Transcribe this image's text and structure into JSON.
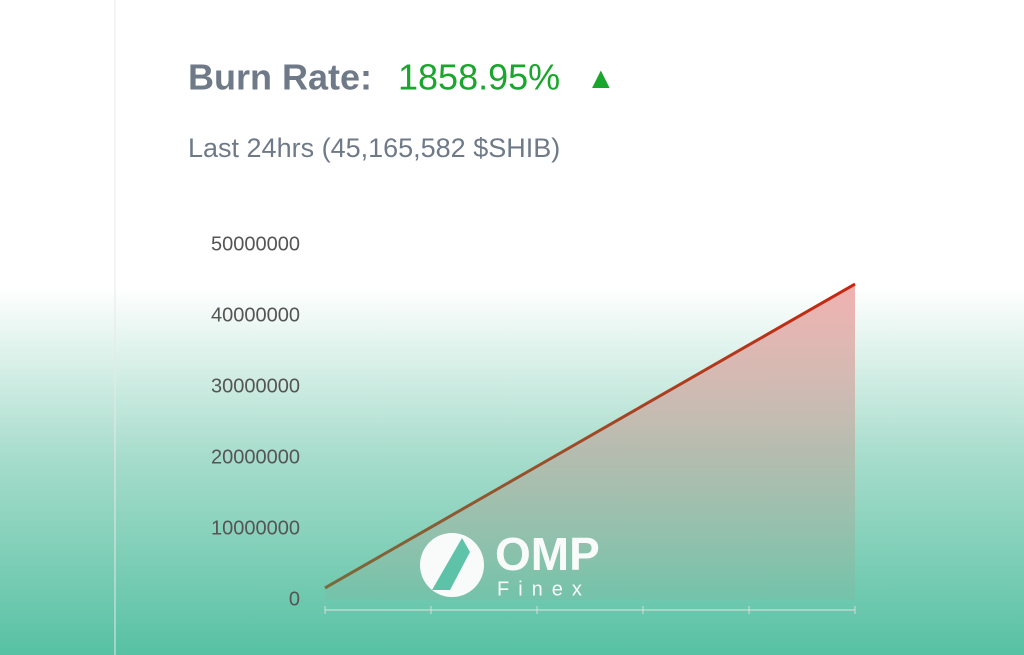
{
  "chart_data": {
    "type": "area",
    "title": "Burn Rate:",
    "title_value": "1858.95%",
    "title_marker": "▲",
    "subtitle": "Last 24hrs (45,165,582 $SHIB)",
    "categories": [
      null,
      null,
      null,
      null,
      null,
      null
    ],
    "series": [
      {
        "color": "#c8260f",
        "values": [
          1700000,
          10260000,
          18820000,
          27380000,
          35940000,
          44500000
        ]
      }
    ],
    "ylim": [
      0,
      50000000
    ],
    "yticks": [
      0,
      10000000,
      20000000,
      30000000,
      40000000,
      50000000
    ],
    "grid": false
  },
  "watermark": {
    "brand": "OMP",
    "sub": "Finex"
  }
}
